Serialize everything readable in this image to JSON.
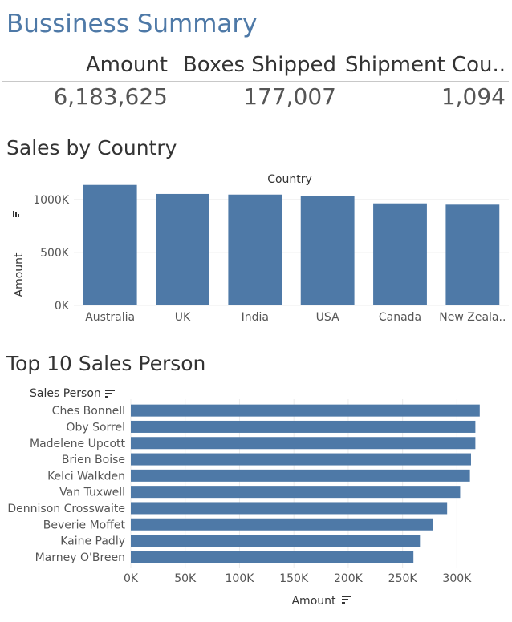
{
  "dashboard": {
    "title": "Bussiness Summary",
    "kpis": [
      {
        "label": "Amount",
        "value": "6,183,625"
      },
      {
        "label": "Boxes Shipped",
        "value": "177,007"
      },
      {
        "label": "Shipment Cou..",
        "value": "1,094"
      }
    ],
    "sales_by_country_title": "Sales by Country",
    "top_sales_title": "Top 10 Sales Person",
    "bar_color": "#4e79a7"
  },
  "chart_data": [
    {
      "type": "bar",
      "orientation": "vertical",
      "title": "Sales by Country",
      "xlabel": "Country",
      "ylabel": "Amount",
      "categories": [
        "Australia",
        "UK",
        "India",
        "USA",
        "Canada",
        "New Zeala.."
      ],
      "values": [
        1137000,
        1052000,
        1046000,
        1035000,
        963000,
        951000
      ],
      "ylim": [
        0,
        1150000
      ],
      "yticks": [
        0,
        500000,
        1000000
      ],
      "ytick_labels": [
        "0K",
        "500K",
        "1000K"
      ],
      "grid": true
    },
    {
      "type": "bar",
      "orientation": "horizontal",
      "title": "Top 10 Sales Person",
      "xlabel": "Amount",
      "ylabel": "Sales Person",
      "categories": [
        "Ches Bonnell",
        "Oby Sorrel",
        "Madelene Upcott",
        "Brien Boise",
        "Kelci Walkden",
        "Van Tuxwell",
        "Dennison Crosswaite",
        "Beverie Moffet",
        "Kaine Padly",
        "Marney O'Breen"
      ],
      "values": [
        321000,
        317000,
        317000,
        313000,
        312000,
        303000,
        291000,
        278000,
        266000,
        260000
      ],
      "xlim": [
        0,
        330000
      ],
      "xticks": [
        0,
        50000,
        100000,
        150000,
        200000,
        250000,
        300000
      ],
      "xtick_labels": [
        "0K",
        "50K",
        "100K",
        "150K",
        "200K",
        "250K",
        "300K"
      ],
      "grid": true
    }
  ]
}
